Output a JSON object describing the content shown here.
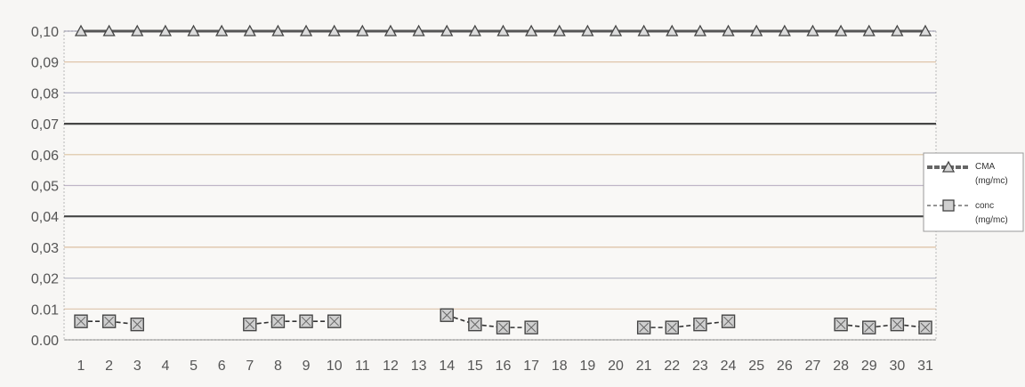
{
  "chart_data": {
    "type": "line",
    "title": "",
    "xlabel": "",
    "ylabel": "",
    "categories": [
      "1",
      "2",
      "3",
      "4",
      "5",
      "6",
      "7",
      "8",
      "9",
      "10",
      "11",
      "12",
      "13",
      "14",
      "15",
      "16",
      "17",
      "18",
      "19",
      "20",
      "21",
      "22",
      "23",
      "24",
      "25",
      "26",
      "27",
      "28",
      "29",
      "30",
      "31"
    ],
    "y_ticks": [
      "0,10",
      "0,09",
      "0,08",
      "0,07",
      "0,06",
      "0,05",
      "0,04",
      "0,03",
      "0,02",
      "0.01",
      "0.00"
    ],
    "ylim": [
      0,
      0.1
    ],
    "grid": true,
    "legend_position": "right",
    "series": [
      {
        "name": "CMA (mg/mc)",
        "line_color": "#555555",
        "values": [
          0.1,
          0.1,
          0.1,
          0.1,
          0.1,
          0.1,
          0.1,
          0.1,
          0.1,
          0.1,
          0.1,
          0.1,
          0.1,
          0.1,
          0.1,
          0.1,
          0.1,
          0.1,
          0.1,
          0.1,
          0.1,
          0.1,
          0.1,
          0.1,
          0.1,
          0.1,
          0.1,
          0.1,
          0.1,
          0.1,
          0.1
        ]
      },
      {
        "name": "conc (mg/mc)",
        "line_color": "#333333",
        "values": [
          0.006,
          0.006,
          0.005,
          null,
          null,
          null,
          0.005,
          0.006,
          0.006,
          0.006,
          null,
          null,
          null,
          0.008,
          0.005,
          0.004,
          0.004,
          null,
          null,
          null,
          0.004,
          0.004,
          0.005,
          0.006,
          null,
          null,
          null,
          0.005,
          0.004,
          0.005,
          0.004
        ]
      }
    ],
    "legend": [
      {
        "line1": "CMA",
        "line2": "(mg/mc)"
      },
      {
        "line1": "conc",
        "line2": "(mg/mc)"
      }
    ]
  }
}
